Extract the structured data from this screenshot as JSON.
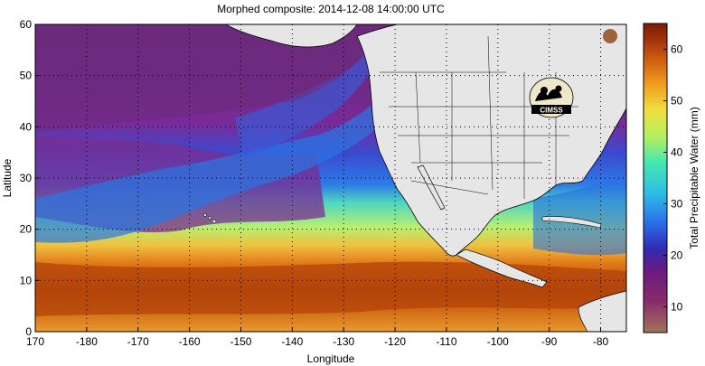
{
  "title": "Morphed composite: 2014-12-08 14:00:00 UTC",
  "map": {
    "x_axis_label": "Longitude",
    "y_axis_label": "Latitude",
    "x_ticks": [
      "170",
      "-180",
      "-170",
      "-160",
      "-150",
      "-140",
      "-130",
      "-120",
      "-110",
      "-100",
      "-90",
      "-80"
    ],
    "y_ticks": [
      "0",
      "10",
      "20",
      "30",
      "40",
      "50",
      "60"
    ],
    "x_range": [
      170,
      285
    ],
    "y_range": [
      0,
      60
    ],
    "gridlines": "dotted",
    "land_color": "#e6e6e6",
    "logo_text": "CIMSS"
  },
  "colorbar": {
    "label": "Total Precipitable Water (mm)",
    "ticks": [
      "10",
      "20",
      "30",
      "40",
      "50",
      "60"
    ],
    "range": [
      5,
      65
    ],
    "colors": [
      "#a0765a",
      "#8a2c6a",
      "#6a1a80",
      "#2f2ab0",
      "#2a6ae6",
      "#2fbce6",
      "#44e8b0",
      "#b0f060",
      "#f0e040",
      "#f0a020",
      "#d06010",
      "#a03008",
      "#7a1c04"
    ]
  }
}
